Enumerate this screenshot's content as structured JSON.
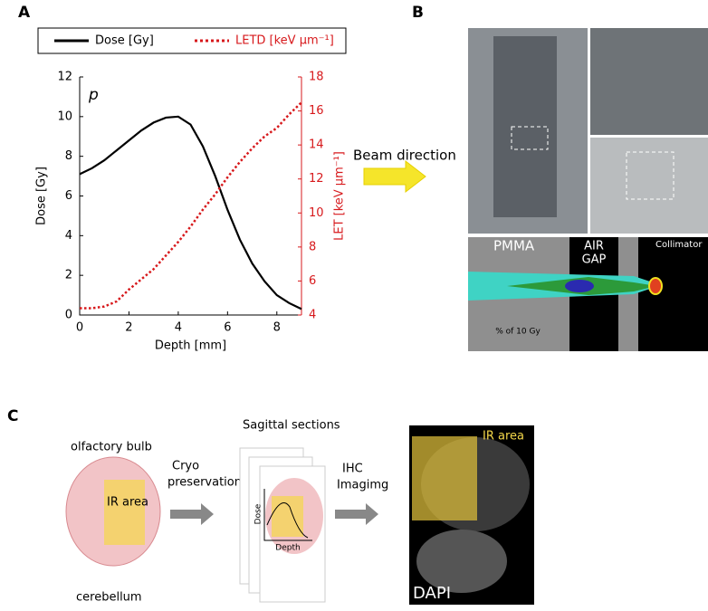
{
  "chart_data": {
    "type": "line",
    "annotation": "p",
    "xlabel": "Depth [mm]",
    "ylabel": "Dose [Gy]",
    "y2label": "LET [keV μm⁻¹]",
    "x": [
      0,
      0.5,
      1,
      1.5,
      2,
      2.5,
      3,
      3.5,
      4,
      4.5,
      5,
      5.5,
      6,
      6.5,
      7,
      7.5,
      8,
      8.5,
      9
    ],
    "series": [
      {
        "name": "Dose [Gy]",
        "color": "#000000",
        "line_style": "solid",
        "values": [
          7.1,
          7.4,
          7.8,
          8.3,
          8.8,
          9.3,
          9.7,
          9.95,
          10.0,
          9.6,
          8.5,
          7.0,
          5.3,
          3.8,
          2.6,
          1.7,
          1.0,
          0.6,
          0.3
        ]
      },
      {
        "name": "LETD [keV μm⁻¹]",
        "color": "#d7191c",
        "line_style": "dotted",
        "axis": "y2",
        "values": [
          4.4,
          4.4,
          4.5,
          4.8,
          5.5,
          6.1,
          6.7,
          7.5,
          8.3,
          9.2,
          10.2,
          11.1,
          12.1,
          13.0,
          13.8,
          14.5,
          15.0,
          15.8,
          16.5
        ]
      }
    ],
    "xlim": [
      0,
      9
    ],
    "xticks": [
      0,
      2,
      4,
      6,
      8
    ],
    "ylim": [
      0,
      12
    ],
    "yticks": [
      0,
      2,
      4,
      6,
      8,
      10,
      12
    ],
    "y2lim": [
      4,
      18
    ],
    "y2ticks": [
      4,
      6,
      8,
      10,
      12,
      14,
      16,
      18
    ]
  },
  "panels": {
    "a": {
      "label": "A"
    },
    "b": {
      "label": "B",
      "arrow_text": "Beam direction",
      "pmma": "PMMA",
      "air": "AIR",
      "gap": "GAP",
      "collimator": "Collimator",
      "scale": "% of 10 Gy"
    },
    "c": {
      "label": "C",
      "olfactory": "olfactory bulb",
      "ir_area": "IR area",
      "cerebellum": "cerebellum",
      "cryo1": "Cryo",
      "cryo2": "preservation",
      "sagittal": "Sagittal sections",
      "dose": "Dose",
      "depth": "Depth",
      "ihc1": "IHC",
      "ihc2": "Imagimg",
      "ir_area2": "IR area",
      "dapi": "DAPI"
    }
  }
}
